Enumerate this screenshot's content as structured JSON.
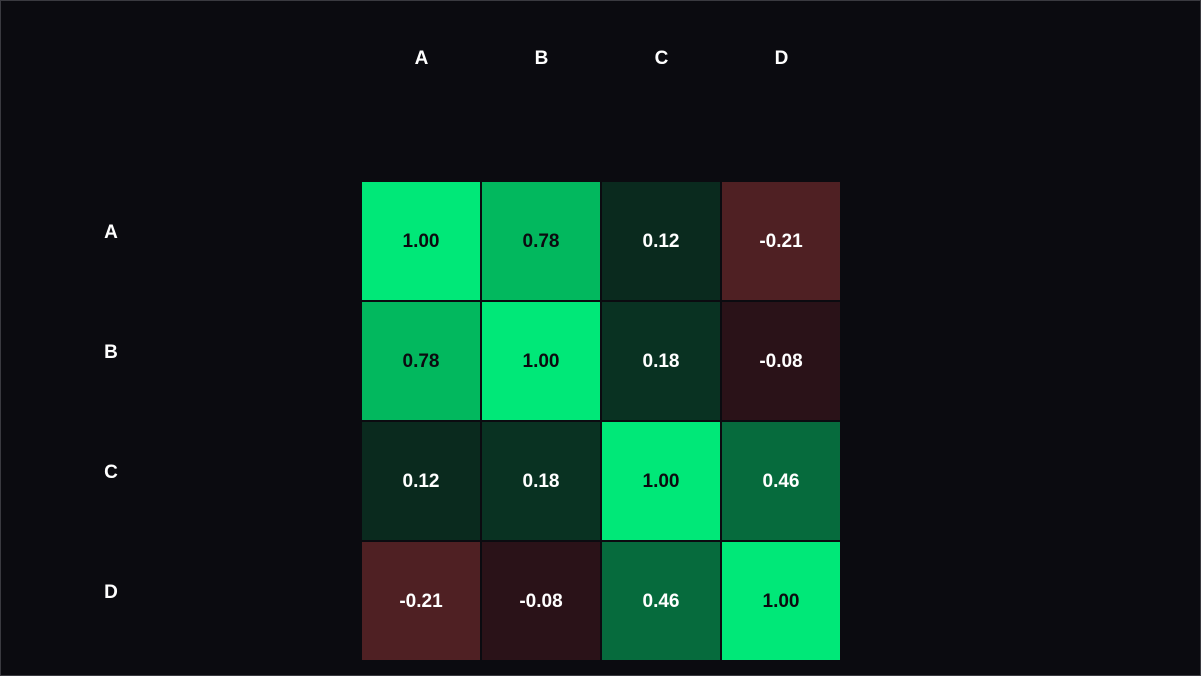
{
  "chart_data": {
    "type": "heatmap",
    "x_categories": [
      "A",
      "B",
      "C",
      "D"
    ],
    "y_categories": [
      "A",
      "B",
      "C",
      "D"
    ],
    "values": [
      [
        1,
        0.78,
        0.12,
        -0.21
      ],
      [
        0.78,
        1,
        0.18,
        -0.08
      ],
      [
        0.12,
        0.18,
        1,
        0.46
      ],
      [
        -0.21,
        -0.08,
        0.46,
        1
      ]
    ],
    "value_labels": [
      [
        "1.00",
        "0.78",
        "0.12",
        "-0.21"
      ],
      [
        "0.78",
        "1.00",
        "0.18",
        "-0.08"
      ],
      [
        "0.12",
        "0.18",
        "1.00",
        "0.46"
      ],
      [
        "-0.21",
        "-0.08",
        "0.46",
        "1.00"
      ]
    ],
    "colors": [
      [
        "#00e878",
        "#02b85e",
        "#0a2a1e",
        "#4f2023"
      ],
      [
        "#02b85e",
        "#00e878",
        "#093222",
        "#2a1218"
      ],
      [
        "#0a2a1e",
        "#093222",
        "#00e878",
        "#066b3d"
      ],
      [
        "#4f2023",
        "#2a1218",
        "#066b3d",
        "#00e878"
      ]
    ]
  }
}
